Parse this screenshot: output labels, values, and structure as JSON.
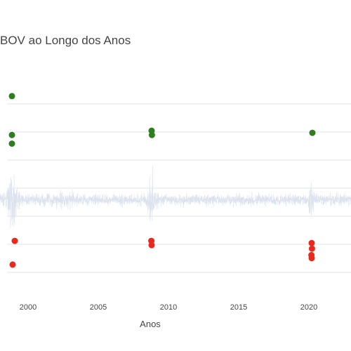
{
  "chart_data": {
    "type": "line",
    "title": "BOV ao Longo dos Anos",
    "xlabel": "Anos",
    "ylabel": "",
    "x_ticks": [
      "2000",
      "2005",
      "2010",
      "2015",
      "2020"
    ],
    "x_range": [
      1997.6,
      2023.0
    ],
    "y_range": [
      -0.22,
      0.3
    ],
    "grid": true,
    "legend": "none",
    "colors": {
      "returns_line": "#dde3ee",
      "positive_outlier": "#2e7d1f",
      "negative_outlier": "#e8291c",
      "grid": "#e2e6ee"
    },
    "series": [
      {
        "kind": "daily_returns_line",
        "note_range": "1998-2023",
        "typical_abs_return": 0.02
      },
      {
        "kind": "positive_outliers",
        "points": [
          {
            "x": 1998.85,
            "y": 0.24
          },
          {
            "x": 1998.85,
            "y": 0.15
          },
          {
            "x": 1998.85,
            "y": 0.13
          },
          {
            "x": 2008.8,
            "y": 0.16
          },
          {
            "x": 2008.82,
            "y": 0.15
          },
          {
            "x": 2020.25,
            "y": 0.155
          }
        ]
      },
      {
        "kind": "negative_outliers",
        "points": [
          {
            "x": 1999.05,
            "y": -0.095
          },
          {
            "x": 1998.9,
            "y": -0.15
          },
          {
            "x": 2008.78,
            "y": -0.095
          },
          {
            "x": 2008.8,
            "y": -0.105
          },
          {
            "x": 2020.2,
            "y": -0.1
          },
          {
            "x": 2020.22,
            "y": -0.113
          },
          {
            "x": 2020.18,
            "y": -0.128
          },
          {
            "x": 2020.2,
            "y": -0.135
          }
        ]
      }
    ]
  }
}
